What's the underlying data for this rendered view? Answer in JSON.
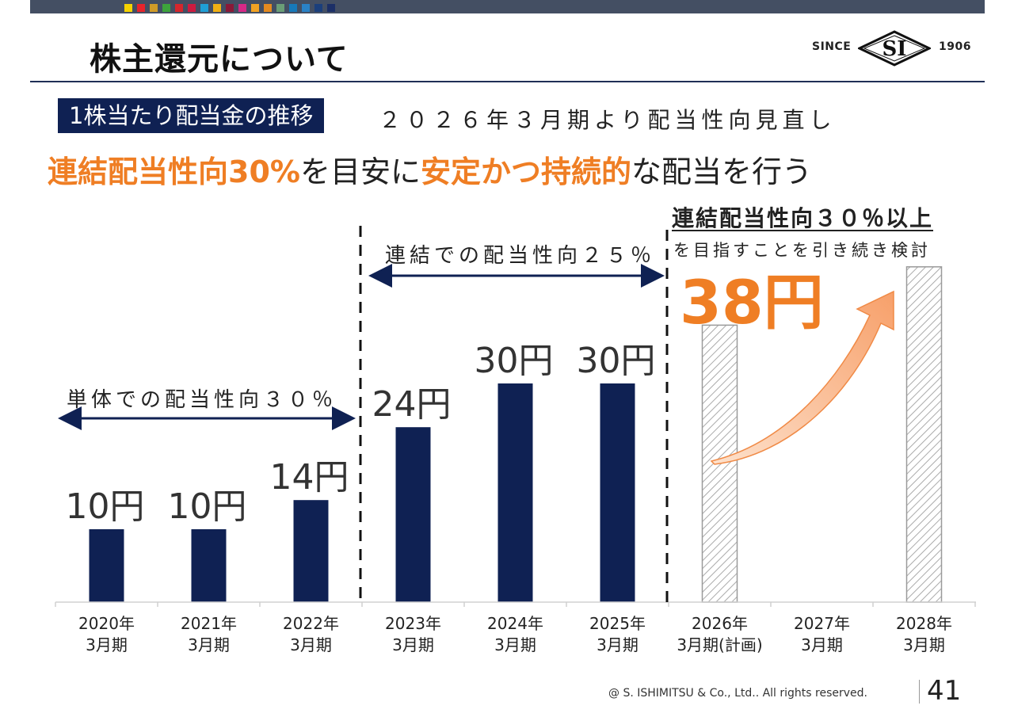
{
  "header": {
    "title": "株主還元について",
    "logo": {
      "since": "SINCE",
      "mark": "SI",
      "year": "1906"
    },
    "brand_colors": [
      "#f5d200",
      "#e6242c",
      "#d09b28",
      "#3da33c",
      "#d5262d",
      "#cd1b40",
      "#1f9fd6",
      "#f0b013",
      "#8a1938",
      "#d72987",
      "#f2a223",
      "#e48a1f",
      "#6a9e77",
      "#1779ba",
      "#2a82c7",
      "#1b3f7c",
      "#1c2f67"
    ]
  },
  "section": {
    "tag": "1株当たり配当金の推移",
    "note": "２０２６年３月期より配当性向見直し"
  },
  "headline": {
    "part1": "連結配当性向30%",
    "part2": "を目安に",
    "part3": "安定かつ持続的",
    "part4": "な配当を行う"
  },
  "plan": {
    "heading": "連結配当性向３０％以上",
    "sub": "を目指すことを引き続き検討",
    "value": "38円"
  },
  "periods": [
    {
      "label": "単体での配当性向３０％",
      "from": 0,
      "to": 2
    },
    {
      "label": "連結での配当性向２５％",
      "from": 3,
      "to": 5
    }
  ],
  "chart_data": {
    "type": "bar",
    "categories": [
      [
        "2020年",
        "3月期"
      ],
      [
        "2021年",
        "3月期"
      ],
      [
        "2022年",
        "3月期"
      ],
      [
        "2023年",
        "3月期"
      ],
      [
        "2024年",
        "3月期"
      ],
      [
        "2025年",
        "3月期"
      ],
      [
        "2026年",
        "3月期(計画)"
      ],
      [
        "2027年",
        "3月期"
      ],
      [
        "2028年",
        "3月期"
      ]
    ],
    "values": [
      10,
      10,
      14,
      24,
      30,
      30,
      38,
      null,
      46
    ],
    "value_labels": [
      "10円",
      "10円",
      "14円",
      "24円",
      "30円",
      "30円",
      "",
      "",
      ""
    ],
    "hatched": [
      false,
      false,
      false,
      false,
      false,
      false,
      true,
      false,
      true
    ],
    "ylim": [
      0,
      50
    ],
    "bar_color": "#0f2153",
    "accent_color": "#ef7e24"
  },
  "footer": {
    "copyright": "@ S. ISHIMITSU & Co., Ltd.. All rights reserved.",
    "page": "41"
  }
}
